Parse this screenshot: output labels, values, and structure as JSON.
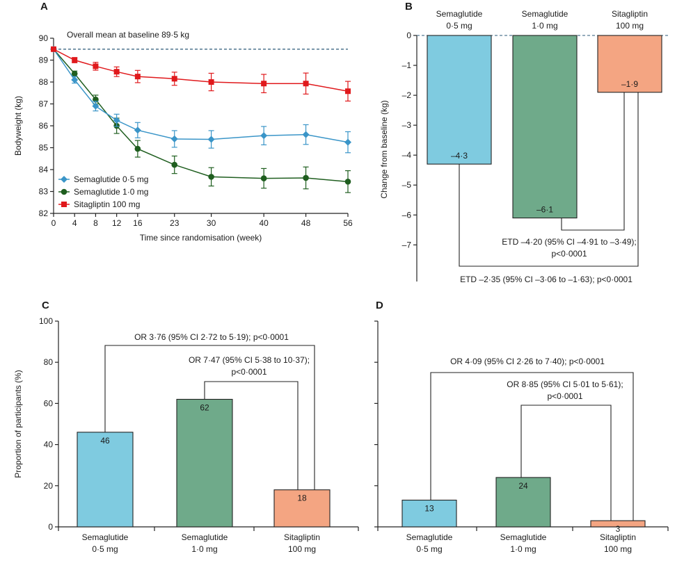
{
  "chart_data": [
    {
      "panel": "A",
      "type": "line",
      "xlabel": "Time since randomisation (week)",
      "ylabel": "Bodyweight (kg)",
      "x": [
        0,
        4,
        8,
        12,
        16,
        23,
        30,
        40,
        48,
        56
      ],
      "x_tick_labels": [
        "0",
        "4",
        "8",
        "12",
        "16",
        "23",
        "30",
        "40",
        "48",
        "56"
      ],
      "ylim": [
        82,
        90
      ],
      "y_ticks": [
        "82",
        "83",
        "84",
        "85",
        "86",
        "87",
        "88",
        "89",
        "90"
      ],
      "reference_line": {
        "value": 89.5,
        "label": "Overall mean at baseline 89·5 kg"
      },
      "series": [
        {
          "name": "Semaglutide 0·5 mg",
          "color": "#3a95c8",
          "marker": "diamond",
          "values": [
            89.5,
            88.1,
            86.9,
            86.25,
            85.8,
            85.4,
            85.38,
            85.55,
            85.6,
            85.25
          ],
          "errors": [
            0,
            0.15,
            0.22,
            0.28,
            0.35,
            0.38,
            0.4,
            0.42,
            0.45,
            0.48
          ]
        },
        {
          "name": "Semaglutide 1·0 mg",
          "color": "#1f5e1f",
          "marker": "circle",
          "values": [
            89.5,
            88.38,
            87.2,
            86.0,
            84.95,
            84.22,
            83.67,
            83.6,
            83.62,
            83.45
          ],
          "errors": [
            0,
            0.12,
            0.2,
            0.35,
            0.38,
            0.4,
            0.42,
            0.45,
            0.5,
            0.5
          ]
        },
        {
          "name": "Sitagliptin 100 mg",
          "color": "#e0191c",
          "marker": "square",
          "values": [
            89.5,
            89.0,
            88.72,
            88.47,
            88.25,
            88.15,
            88.0,
            87.93,
            87.93,
            87.58
          ],
          "errors": [
            0,
            0.12,
            0.18,
            0.22,
            0.28,
            0.3,
            0.4,
            0.42,
            0.48,
            0.45
          ]
        }
      ]
    },
    {
      "panel": "B",
      "type": "bar",
      "ylabel": "Change from baseline (kg)",
      "ylim": [
        -8.2,
        0
      ],
      "y_ticks": [
        "0",
        "–1",
        "–2",
        "–3",
        "–4",
        "–5",
        "–6",
        "–7"
      ],
      "categories": [
        {
          "line1": "Semaglutide",
          "line2": "0·5 mg"
        },
        {
          "line1": "Semaglutide",
          "line2": "1·0 mg"
        },
        {
          "line1": "Sitagliptin",
          "line2": "100 mg"
        }
      ],
      "values": [
        -4.3,
        -6.1,
        -1.9
      ],
      "value_labels": [
        "–4·3",
        "–6·1",
        "–1·9"
      ],
      "colors": [
        "#7fcbe0",
        "#6faa8a",
        "#f4a582"
      ],
      "annotations": [
        {
          "line1": "ETD –4·20 (95% CI –4·91 to –3·49);",
          "line2": "p<0·0001"
        },
        {
          "line1": "ETD –2·35 (95% CI –3·06 to –1·63); p<0·0001",
          "line2": ""
        }
      ]
    },
    {
      "panel": "C",
      "type": "bar",
      "ylabel": "Proportion of participants (%)",
      "ylim": [
        0,
        100
      ],
      "y_ticks": [
        "0",
        "20",
        "40",
        "60",
        "80",
        "100"
      ],
      "categories": [
        {
          "line1": "Semaglutide",
          "line2": "0·5 mg"
        },
        {
          "line1": "Semaglutide",
          "line2": "1·0 mg"
        },
        {
          "line1": "Sitagliptin",
          "line2": "100 mg"
        }
      ],
      "values": [
        46,
        62,
        18
      ],
      "value_labels": [
        "46",
        "62",
        "18"
      ],
      "colors": [
        "#7fcbe0",
        "#6faa8a",
        "#f4a582"
      ],
      "annotations": [
        {
          "line1": "OR 3·76 (95% CI 2·72 to 5·19);  p<0·0001",
          "line2": ""
        },
        {
          "line1": "OR 7·47 (95% CI 5·38 to 10·37);",
          "line2": "p<0·0001"
        }
      ]
    },
    {
      "panel": "D",
      "type": "bar",
      "ylabel": "",
      "ylim": [
        0,
        100
      ],
      "categories": [
        {
          "line1": "Semaglutide",
          "line2": "0·5 mg"
        },
        {
          "line1": "Semaglutide",
          "line2": "1·0 mg"
        },
        {
          "line1": "Sitagliptin",
          "line2": "100 mg"
        }
      ],
      "values": [
        13,
        24,
        3
      ],
      "value_labels": [
        "13",
        "24",
        "3"
      ],
      "colors": [
        "#7fcbe0",
        "#6faa8a",
        "#f4a582"
      ],
      "annotations": [
        {
          "line1": "OR 4·09 (95% CI 2·26 to 7·40);  p<0·0001",
          "line2": ""
        },
        {
          "line1": "OR 8·85 (95% CI 5·01 to 5·61);",
          "line2": "p<0·0001"
        }
      ]
    }
  ]
}
